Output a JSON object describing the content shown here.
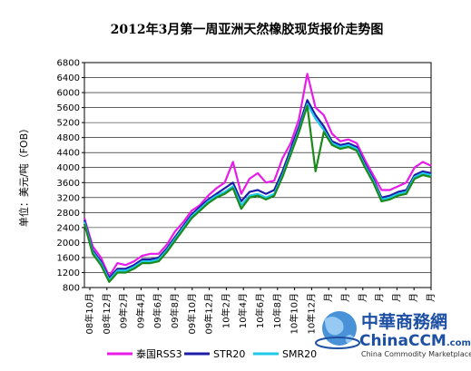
{
  "chart_data": {
    "type": "line",
    "title": "2012年3月第一周亚洲天然橡胶现货报价走势图",
    "ylabel": "单位：美元/吨（FOB）",
    "xlabel": "",
    "ylim": [
      800,
      6800
    ],
    "yticks": [
      800,
      1200,
      1600,
      2000,
      2400,
      2800,
      3200,
      3600,
      4000,
      4400,
      4800,
      5200,
      5600,
      6000,
      6400,
      6800
    ],
    "xlim": [
      0,
      42
    ],
    "x_tick_labels": [
      "08年10月",
      "08年12月",
      "09年2月",
      "09年4月",
      "09年6月",
      "09年8月",
      "09年10月",
      "09年12月",
      "10年2月",
      "10年4月",
      "10年6月",
      "10年8月",
      "10年10月",
      "10年12月",
      "月",
      "月",
      "月",
      "月",
      "月",
      "月",
      "月"
    ],
    "grid": true,
    "legend_position": "bottom",
    "x": [
      0,
      1,
      2,
      3,
      4,
      5,
      6,
      7,
      8,
      9,
      10,
      11,
      12,
      13,
      14,
      15,
      16,
      17,
      18,
      19,
      20,
      21,
      22,
      23,
      24,
      25,
      26,
      27,
      28,
      29,
      30,
      31,
      32,
      33,
      34,
      35,
      36,
      37,
      38,
      39,
      40,
      41,
      42
    ],
    "series": [
      {
        "name": "泰国RSS3",
        "color": "#e81ce8",
        "values": [
          2650,
          1900,
          1600,
          1100,
          1450,
          1400,
          1500,
          1650,
          1700,
          1700,
          1950,
          2300,
          2550,
          2850,
          3000,
          3250,
          3450,
          3600,
          4150,
          3300,
          3700,
          3850,
          3600,
          3650,
          4250,
          4650,
          5300,
          6500,
          5600,
          5400,
          4900,
          4700,
          4750,
          4650,
          4200,
          3800,
          3400,
          3400,
          3500,
          3600,
          4000,
          4150,
          4050
        ]
      },
      {
        "name": "STR20",
        "color": "#1c1ca8",
        "values": [
          2600,
          1800,
          1500,
          1050,
          1300,
          1300,
          1400,
          1550,
          1550,
          1600,
          1850,
          2150,
          2450,
          2750,
          2950,
          3150,
          3300,
          3450,
          3600,
          3100,
          3350,
          3400,
          3300,
          3400,
          3900,
          4500,
          5100,
          5800,
          5400,
          5100,
          4700,
          4600,
          4650,
          4550,
          4100,
          3700,
          3200,
          3250,
          3350,
          3400,
          3800,
          3900,
          3850
        ]
      },
      {
        "name": "SMR20",
        "color": "#1ec8e8",
        "values": [
          2550,
          1750,
          1450,
          1000,
          1250,
          1250,
          1350,
          1500,
          1500,
          1550,
          1800,
          2100,
          2400,
          2700,
          2900,
          3100,
          3250,
          3350,
          3500,
          3000,
          3250,
          3300,
          3200,
          3300,
          3800,
          4400,
          5000,
          5700,
          5300,
          5000,
          4650,
          4550,
          4600,
          4500,
          4050,
          3650,
          3150,
          3200,
          3300,
          3350,
          3750,
          3850,
          3800
        ]
      },
      {
        "name": "",
        "color": "#1a8a1a",
        "values": [
          2500,
          1700,
          1400,
          950,
          1200,
          1200,
          1300,
          1450,
          1450,
          1500,
          1750,
          2050,
          2350,
          2650,
          2850,
          3050,
          3200,
          3300,
          3450,
          2900,
          3200,
          3250,
          3150,
          3250,
          3750,
          4350,
          4950,
          5650,
          3900,
          4950,
          4600,
          4500,
          4550,
          4450,
          4000,
          3600,
          3100,
          3150,
          3250,
          3300,
          3700,
          3800,
          3750
        ]
      }
    ]
  },
  "watermark": {
    "brand_cn": "中華商務網",
    "brand_en": "ChinaCCM",
    "brand_suffix": ".com",
    "tagline": "China Commodity Marketplace"
  }
}
